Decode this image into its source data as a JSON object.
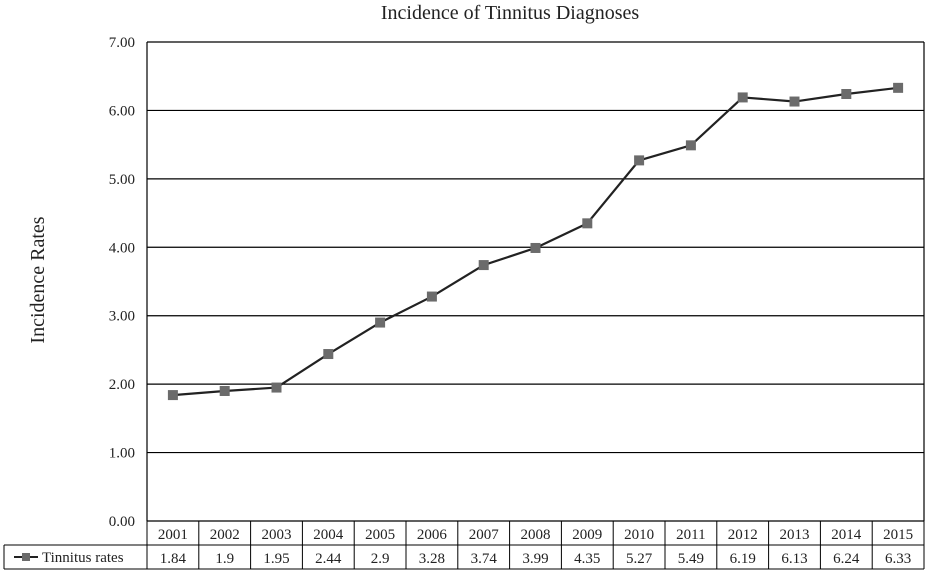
{
  "chart_data": {
    "type": "line",
    "title": "Incidence of Tinnitus Diagnoses",
    "xlabel": "",
    "ylabel": "Incidence Rates",
    "categories": [
      "2001",
      "2002",
      "2003",
      "2004",
      "2005",
      "2006",
      "2007",
      "2008",
      "2009",
      "2010",
      "2011",
      "2012",
      "2013",
      "2014",
      "2015"
    ],
    "series": [
      {
        "name": "Tinnitus rates",
        "values": [
          1.84,
          1.9,
          1.95,
          2.44,
          2.9,
          3.28,
          3.74,
          3.99,
          4.35,
          5.27,
          5.49,
          6.19,
          6.13,
          6.24,
          6.33
        ],
        "value_labels": [
          "1.84",
          "1.9",
          "1.95",
          "2.44",
          "2.9",
          "3.28",
          "3.74",
          "3.99",
          "4.35",
          "5.27",
          "5.49",
          "6.19",
          "6.13",
          "6.24",
          "6.33"
        ],
        "color": "#222222",
        "marker_color": "#6b6b6b",
        "marker": "square"
      }
    ],
    "ylim": [
      0,
      7
    ],
    "yticks": [
      "0.00",
      "1.00",
      "2.00",
      "3.00",
      "4.00",
      "5.00",
      "6.00",
      "7.00"
    ],
    "grid": true,
    "legend": "data-table-row"
  }
}
